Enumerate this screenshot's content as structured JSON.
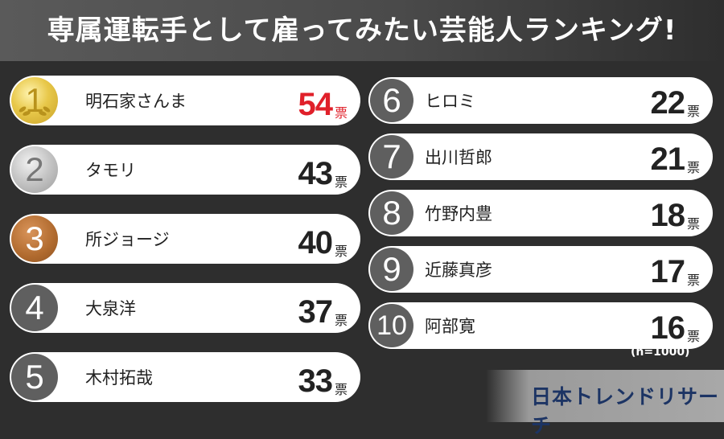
{
  "title": "専属運転手として雇ってみたい芸能人ランキング!",
  "chart_data": {
    "type": "table",
    "columns": [
      "rank",
      "name",
      "votes"
    ],
    "unit": "票",
    "rows": [
      {
        "rank": "1",
        "name": "明石家さんま",
        "votes": 54
      },
      {
        "rank": "2",
        "name": "タモリ",
        "votes": 43
      },
      {
        "rank": "3",
        "name": "所ジョージ",
        "votes": 40
      },
      {
        "rank": "4",
        "name": "大泉洋",
        "votes": 37
      },
      {
        "rank": "5",
        "name": "木村拓哉",
        "votes": 33
      },
      {
        "rank": "6",
        "name": "ヒロミ",
        "votes": 22
      },
      {
        "rank": "7",
        "name": "出川哲郎",
        "votes": 21
      },
      {
        "rank": "8",
        "name": "竹野内豊",
        "votes": 18
      },
      {
        "rank": "9",
        "name": "近藤真彦",
        "votes": 17
      },
      {
        "rank": "10",
        "name": "阿部寛",
        "votes": 16
      }
    ],
    "note": "(n=1000)",
    "highlight_color": "#e0202a"
  },
  "logo": "日本トレンドリサーチ"
}
